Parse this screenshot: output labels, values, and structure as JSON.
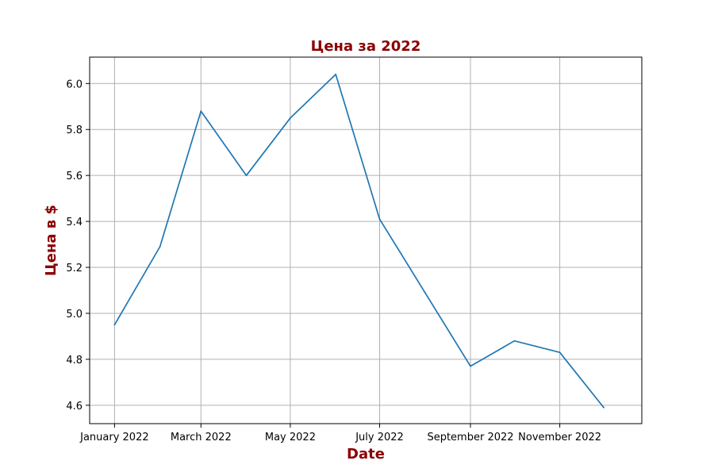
{
  "chart_data": {
    "type": "line",
    "title": "Цена за 2022",
    "xlabel": "Date",
    "ylabel": "Цена в $",
    "label_color": "#8b0000",
    "line_color": "#1f77b4",
    "grid": true,
    "x": [
      "2022-01",
      "2022-02",
      "2022-03",
      "2022-04",
      "2022-05",
      "2022-06",
      "2022-07",
      "2022-08",
      "2022-09",
      "2022-10",
      "2022-11",
      "2022-12"
    ],
    "series": [
      {
        "values": [
          4.95,
          5.29,
          5.88,
          5.6,
          5.85,
          6.04,
          5.41,
          5.09,
          4.77,
          4.88,
          4.83,
          4.59
        ]
      }
    ],
    "xticks": [
      {
        "x": "2022-01",
        "label": "January 2022"
      },
      {
        "x": "2022-03",
        "label": "March 2022"
      },
      {
        "x": "2022-05",
        "label": "May 2022"
      },
      {
        "x": "2022-07",
        "label": "July 2022"
      },
      {
        "x": "2022-09",
        "label": "September 2022"
      },
      {
        "x": "2022-11",
        "label": "November 2022"
      }
    ],
    "yticks": [
      "4.6",
      "4.8",
      "5.0",
      "5.2",
      "5.4",
      "5.6",
      "5.8",
      "6.0"
    ],
    "xlim": [
      "2021-12-15",
      "2022-12-27"
    ],
    "ylim": [
      4.52,
      6.115
    ]
  }
}
